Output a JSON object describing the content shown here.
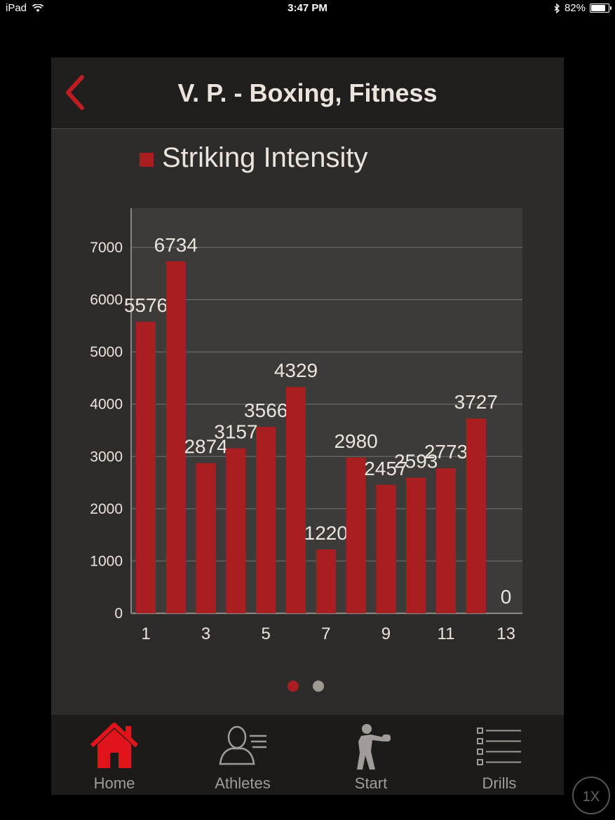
{
  "status_bar": {
    "device": "iPad",
    "time": "3:47 PM",
    "battery": "82%",
    "battery_level": 0.82
  },
  "header": {
    "title": "V. P. - Boxing, Fitness"
  },
  "legend": {
    "label": "Striking Intensity"
  },
  "colors": {
    "bar": "#a91e21",
    "accent": "#e0141a",
    "grid": "#78756f",
    "text": "#ebe4dc"
  },
  "chart_data": {
    "type": "bar",
    "x": [
      1,
      2,
      3,
      4,
      5,
      6,
      7,
      8,
      9,
      10,
      11,
      12,
      13
    ],
    "x_tick_labels": [
      "1",
      "3",
      "5",
      "7",
      "9",
      "11",
      "13"
    ],
    "series": [
      {
        "name": "Striking Intensity",
        "values": [
          5576,
          6734,
          2874,
          3157,
          3566,
          4329,
          1220,
          2980,
          2457,
          2593,
          2773,
          3727,
          0
        ]
      }
    ],
    "ylim": [
      0,
      7000
    ],
    "y_ticks": [
      0,
      1000,
      2000,
      3000,
      4000,
      5000,
      6000,
      7000
    ],
    "grid": true,
    "legend_position": "top-left",
    "title": "",
    "xlabel": "",
    "ylabel": ""
  },
  "pager": {
    "pages": 2,
    "current": 1
  },
  "tabs": [
    {
      "label": "Home",
      "icon": "home-icon",
      "active": true
    },
    {
      "label": "Athletes",
      "icon": "athletes-icon",
      "active": false
    },
    {
      "label": "Start",
      "icon": "boxer-icon",
      "active": false
    },
    {
      "label": "Drills",
      "icon": "list-icon",
      "active": false
    }
  ],
  "zoom_button": {
    "label": "1X"
  }
}
